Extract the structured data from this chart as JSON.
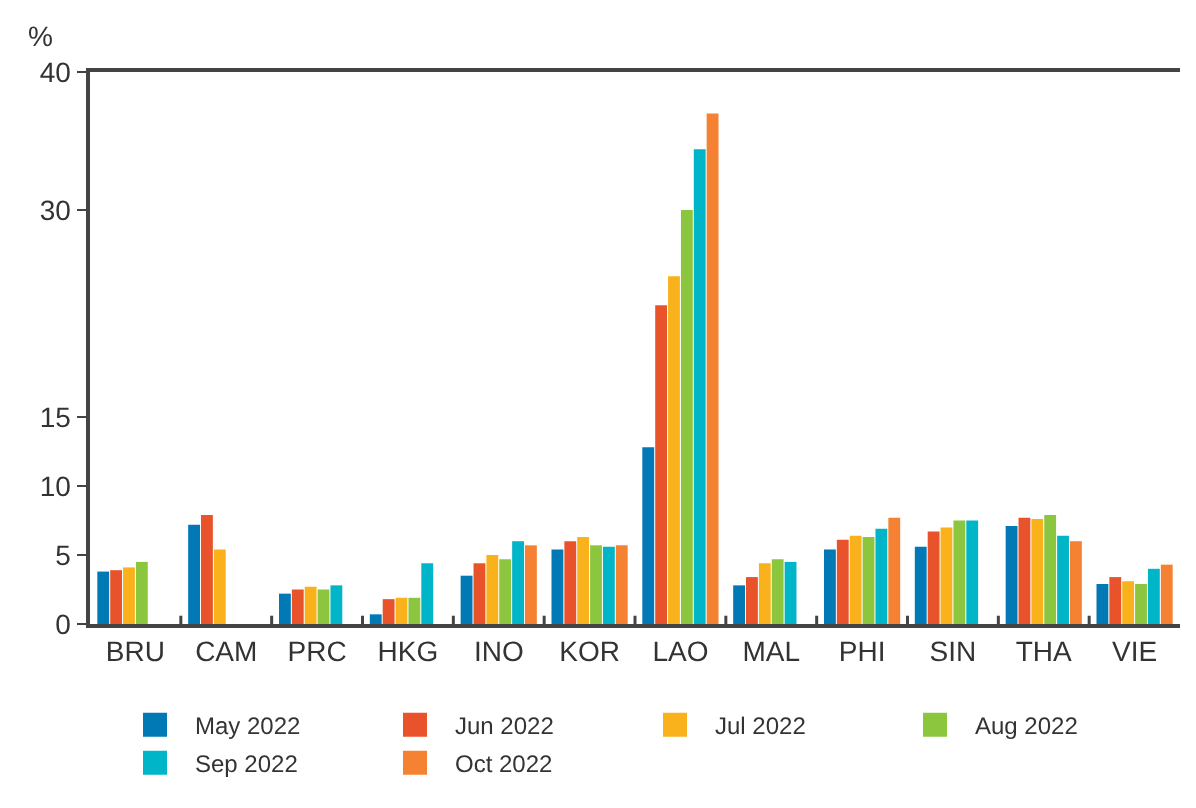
{
  "chart_data": {
    "type": "bar",
    "ylabel": "%",
    "categories": [
      "BRU",
      "CAM",
      "PRC",
      "HKG",
      "INO",
      "KOR",
      "LAO",
      "MAL",
      "PHI",
      "SIN",
      "THA",
      "VIE"
    ],
    "series": [
      {
        "name": "May 2022",
        "color": "#0079b5",
        "values": [
          3.8,
          7.2,
          2.2,
          0.7,
          3.5,
          5.4,
          12.8,
          2.8,
          5.4,
          5.6,
          7.1,
          2.9
        ]
      },
      {
        "name": "Jun 2022",
        "color": "#e8532b",
        "values": [
          3.9,
          7.9,
          2.5,
          1.8,
          4.4,
          6.0,
          23.1,
          3.4,
          6.1,
          6.7,
          7.7,
          3.4
        ]
      },
      {
        "name": "Jul 2022",
        "color": "#f9b21b",
        "values": [
          4.1,
          5.4,
          2.7,
          1.9,
          5.0,
          6.3,
          25.2,
          4.4,
          6.4,
          7.0,
          7.6,
          3.1
        ]
      },
      {
        "name": "Aug 2022",
        "color": "#8cc63f",
        "values": [
          4.5,
          null,
          2.5,
          1.9,
          4.7,
          5.7,
          30.0,
          4.7,
          6.3,
          7.5,
          7.9,
          2.9
        ]
      },
      {
        "name": "Sep 2022",
        "color": "#00b5c8",
        "values": [
          null,
          null,
          2.8,
          4.4,
          6.0,
          5.6,
          34.4,
          4.5,
          6.9,
          7.5,
          6.4,
          4.0
        ]
      },
      {
        "name": "Oct 2022",
        "color": "#f58232",
        "values": [
          null,
          null,
          null,
          null,
          5.7,
          5.7,
          37.0,
          null,
          7.7,
          null,
          6.0,
          4.3
        ]
      }
    ],
    "ylim": [
      0,
      40
    ],
    "yticks": [
      0,
      5,
      10,
      15,
      30,
      40
    ],
    "legend": "bottom"
  }
}
